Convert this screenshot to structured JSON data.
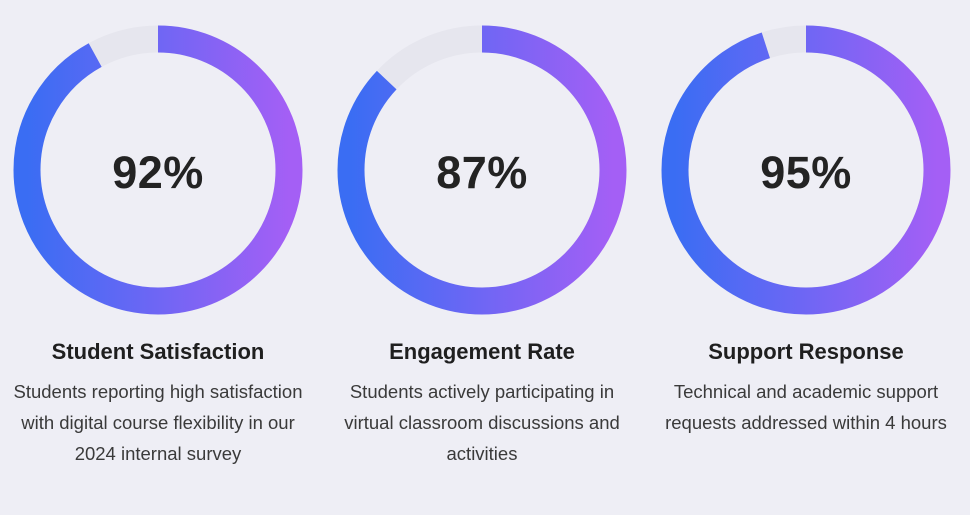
{
  "chart_data": {
    "type": "donut",
    "colors": {
      "gradient_top": "#3a6df3",
      "gradient_bottom": "#a45ff5",
      "track": "#e6e6ee"
    },
    "items": [
      {
        "value": 92,
        "value_label": "92%",
        "title": "Student Satisfaction",
        "description": "Students reporting high satisfaction with digital course flexibility in our 2024 internal survey"
      },
      {
        "value": 87,
        "value_label": "87%",
        "title": "Engagement Rate",
        "description": "Students actively participating in virtual classroom discussions and activities"
      },
      {
        "value": 95,
        "value_label": "95%",
        "title": "Support Response",
        "description": "Technical and academic support requests addressed within 4 hours"
      }
    ]
  }
}
